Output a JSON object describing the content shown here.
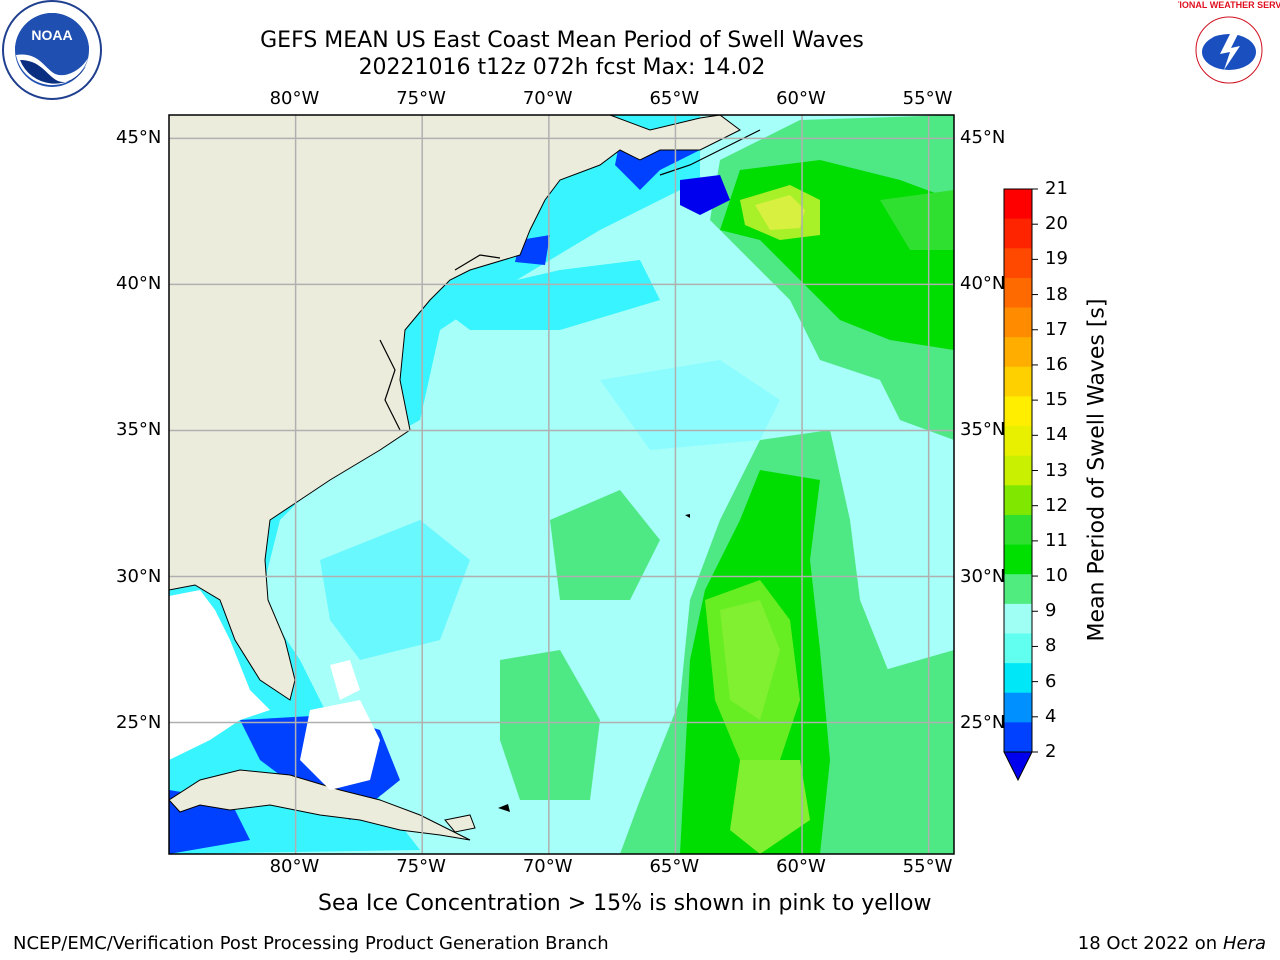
{
  "title": {
    "line1": "GEFS MEAN US East Coast Mean Period of Swell Waves",
    "line2": "20221016 t12z 072h fcst   Max: 14.02"
  },
  "logos": {
    "left": "NOAA",
    "right": "NATIONAL WEATHER SERVICE"
  },
  "map": {
    "lon_labels": [
      "80°W",
      "75°W",
      "70°W",
      "65°W",
      "60°W",
      "55°W"
    ],
    "lat_labels": [
      "45°N",
      "40°N",
      "35°N",
      "30°N",
      "25°N"
    ],
    "lon_range": [
      -85,
      -54
    ],
    "lat_range": [
      20.5,
      45.8
    ],
    "grid": true,
    "colors": {
      "land": "#ececdc",
      "gridline": "#b0b0b0",
      "coast": "#000000"
    }
  },
  "colorbar": {
    "title": "Mean Period of Swell Waves [s]",
    "ticks": [
      "21",
      "20",
      "19",
      "18",
      "17",
      "16",
      "15",
      "14",
      "13",
      "12",
      "11",
      "10",
      "9",
      "8",
      "6",
      "4",
      "2"
    ],
    "colors": [
      "#ff0000",
      "#ff2400",
      "#ff4800",
      "#ff6a00",
      "#ff8c00",
      "#ffae00",
      "#ffd000",
      "#ffee00",
      "#e8f000",
      "#c8f000",
      "#80e800",
      "#30e030",
      "#00e000",
      "#50ec80",
      "#a0fff4",
      "#60fff0",
      "#00e8f8",
      "#0090ff",
      "#0040ff"
    ],
    "extend_color": "#0000ee"
  },
  "footer": {
    "ice_note": "Sea Ice Concentration > 15% is shown in pink to yellow",
    "credit_left": "NCEP/EMC/Verification Post Processing Product Generation Branch",
    "date": "18 Oct 2022 on",
    "machine": "Hera"
  }
}
